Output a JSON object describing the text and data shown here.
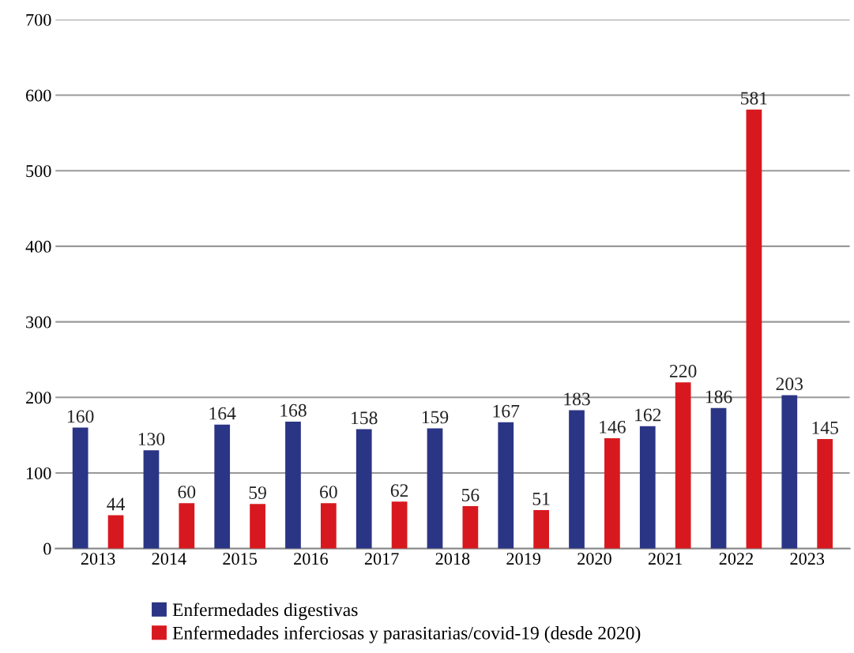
{
  "chart_data": {
    "type": "bar",
    "categories": [
      "2013",
      "2014",
      "2015",
      "2016",
      "2017",
      "2018",
      "2019",
      "2020",
      "2021",
      "2022",
      "2023"
    ],
    "series": [
      {
        "name": "Enfermedades digestivas",
        "color": "#2b3585",
        "values": [
          160,
          130,
          164,
          168,
          158,
          159,
          167,
          183,
          162,
          186,
          203
        ]
      },
      {
        "name": "Enfermedades inferciosas y parasitarias/covid-19 (desde 2020)",
        "color": "#d7191f",
        "values": [
          44,
          60,
          59,
          60,
          62,
          56,
          51,
          146,
          220,
          581,
          145
        ]
      }
    ],
    "ylim": [
      0,
      700
    ],
    "yticks": [
      0,
      100,
      200,
      300,
      400,
      500,
      600,
      700
    ],
    "grid": "y",
    "legend": "bottom",
    "data_labels": true
  }
}
